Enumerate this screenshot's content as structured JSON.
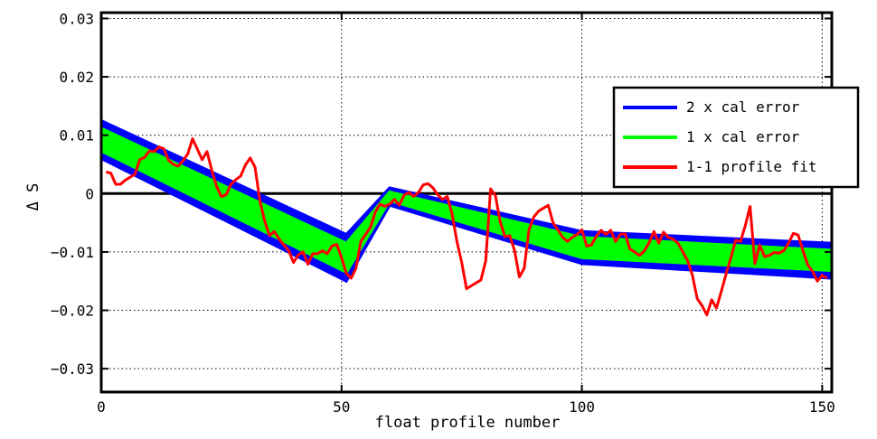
{
  "chart_data": {
    "type": "line",
    "title": "",
    "xlabel": "float profile number",
    "ylabel": "Δ S",
    "xlim": [
      0,
      152
    ],
    "ylim": [
      -0.034,
      0.031
    ],
    "grid": true,
    "legend_position": "right",
    "x_ticks": [
      0,
      50,
      100,
      150
    ],
    "y_ticks": [
      -0.03,
      -0.02,
      -0.01,
      0,
      0.01,
      0.02,
      0.03
    ],
    "x_tick_labels": [
      "0",
      "50",
      "100",
      "150"
    ],
    "y_tick_labels": [
      "−0.03",
      "−0.02",
      "−0.01",
      "0",
      "0.01",
      "0.02",
      "0.03"
    ],
    "reference_line_y": 0,
    "series": [
      {
        "name": "2 x cal error",
        "color": "#0000ff",
        "kind": "band",
        "x": [
          0,
          51,
          60,
          100,
          152
        ],
        "lower": [
          0.006,
          -0.015,
          -0.002,
          -0.012,
          -0.0145
        ],
        "upper": [
          0.0125,
          -0.007,
          0.001,
          -0.0065,
          -0.0085
        ]
      },
      {
        "name": "1 x cal error",
        "color": "#00ff00",
        "kind": "band",
        "x": [
          0,
          51,
          60,
          100,
          152
        ],
        "lower": [
          0.0073,
          -0.0135,
          -0.0012,
          -0.011,
          -0.0132
        ],
        "upper": [
          0.0112,
          -0.0085,
          0.0003,
          -0.0075,
          -0.0097
        ]
      },
      {
        "name": "1-1 profile fit",
        "color": "#ff0000",
        "kind": "line",
        "x": [
          1,
          2,
          3,
          4,
          5,
          6,
          7,
          8,
          9,
          10,
          11,
          12,
          13,
          14,
          15,
          16,
          17,
          18,
          19,
          20,
          21,
          22,
          23,
          24,
          25,
          26,
          27,
          28,
          29,
          30,
          31,
          32,
          33,
          34,
          35,
          36,
          37,
          38,
          39,
          40,
          41,
          42,
          43,
          44,
          45,
          46,
          47,
          48,
          49,
          50,
          51,
          52,
          53,
          54,
          55,
          56,
          57,
          58,
          59,
          60,
          61,
          62,
          63,
          64,
          65,
          66,
          67,
          68,
          69,
          70,
          71,
          72,
          73,
          74,
          75,
          76,
          77,
          78,
          79,
          80,
          81,
          82,
          83,
          84,
          85,
          86,
          87,
          88,
          89,
          90,
          91,
          92,
          93,
          94,
          95,
          96,
          97,
          98,
          99,
          100,
          101,
          102,
          103,
          104,
          105,
          106,
          107,
          108,
          109,
          110,
          111,
          112,
          113,
          114,
          115,
          116,
          117,
          118,
          119,
          120,
          121,
          122,
          123,
          124,
          125,
          126,
          127,
          128,
          129,
          130,
          131,
          132,
          133,
          134,
          135,
          136,
          137,
          138,
          139,
          140,
          141,
          142,
          143,
          144,
          145,
          146,
          147,
          148,
          149,
          150,
          151
        ],
        "y": [
          0.0037,
          0.0035,
          0.0016,
          0.0016,
          0.0023,
          0.0028,
          0.0033,
          0.0058,
          0.0062,
          0.0073,
          0.0072,
          0.008,
          0.0077,
          0.0057,
          0.005,
          0.0047,
          0.0056,
          0.0068,
          0.0094,
          0.0076,
          0.0058,
          0.0072,
          0.004,
          0.0012,
          -0.0005,
          -0.0002,
          0.0016,
          0.0024,
          0.003,
          0.0049,
          0.0061,
          0.0045,
          -0.0012,
          -0.0047,
          -0.0072,
          -0.0065,
          -0.0078,
          -0.0088,
          -0.0098,
          -0.0118,
          -0.0105,
          -0.01,
          -0.0121,
          -0.0103,
          -0.0103,
          -0.0098,
          -0.0103,
          -0.009,
          -0.0087,
          -0.011,
          -0.0137,
          -0.0145,
          -0.0128,
          -0.0082,
          -0.007,
          -0.0058,
          -0.0032,
          -0.0018,
          -0.0022,
          -0.0018,
          -0.001,
          -0.002,
          -0.0003,
          0.0002,
          -0.0005,
          0.0002,
          0.0015,
          0.0017,
          0.001,
          -0.0002,
          -0.001,
          -0.0005,
          -0.0035,
          -0.0082,
          -0.0118,
          -0.0163,
          -0.0158,
          -0.0153,
          -0.0148,
          -0.0115,
          0.0008,
          -0.0003,
          -0.0048,
          -0.0074,
          -0.0072,
          -0.0098,
          -0.0143,
          -0.0128,
          -0.0062,
          -0.004,
          -0.003,
          -0.0025,
          -0.002,
          -0.005,
          -0.0062,
          -0.0075,
          -0.0082,
          -0.0075,
          -0.007,
          -0.0062,
          -0.009,
          -0.0088,
          -0.0073,
          -0.0063,
          -0.007,
          -0.0063,
          -0.0082,
          -0.007,
          -0.0069,
          -0.0095,
          -0.01,
          -0.0106,
          -0.0098,
          -0.0084,
          -0.0065,
          -0.0085,
          -0.0066,
          -0.0075,
          -0.0078,
          -0.0085,
          -0.01,
          -0.0115,
          -0.014,
          -0.018,
          -0.0192,
          -0.0208,
          -0.0182,
          -0.0196,
          -0.0168,
          -0.0138,
          -0.011,
          -0.008,
          -0.0082,
          -0.0055,
          -0.0022,
          -0.012,
          -0.0088,
          -0.0108,
          -0.0106,
          -0.0101,
          -0.0102,
          -0.0098,
          -0.0085,
          -0.0068,
          -0.0071,
          -0.0098,
          -0.0122,
          -0.0133,
          -0.015,
          -0.014,
          -0.0145
        ]
      }
    ]
  }
}
